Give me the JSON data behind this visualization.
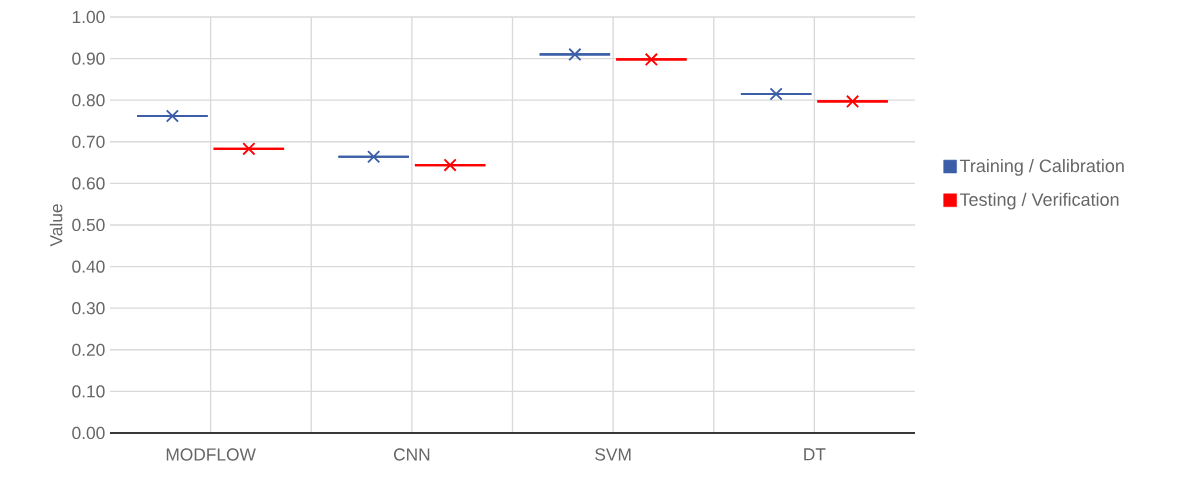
{
  "chart_data": {
    "type": "box",
    "ylabel": "Value",
    "categories": [
      "MODFLOW",
      "CNN",
      "SVM",
      "DT"
    ],
    "series": [
      {
        "name": "Training / Calibration",
        "color": "#3b5ea6",
        "boxes": [
          {
            "low": 0.762,
            "q1": 0.762,
            "median": 0.762,
            "q3": 0.762,
            "high": 0.762,
            "mean": 0.762
          },
          {
            "low": 0.664,
            "q1": 0.664,
            "median": 0.664,
            "q3": 0.664,
            "high": 0.664,
            "mean": 0.664
          },
          {
            "low": 0.91,
            "q1": 0.91,
            "median": 0.91,
            "q3": 0.91,
            "high": 0.91,
            "mean": 0.91
          },
          {
            "low": 0.815,
            "q1": 0.815,
            "median": 0.815,
            "q3": 0.815,
            "high": 0.815,
            "mean": 0.815
          }
        ]
      },
      {
        "name": "Testing / Verification",
        "color": "#ff0000",
        "boxes": [
          {
            "low": 0.683,
            "q1": 0.683,
            "median": 0.683,
            "q3": 0.683,
            "high": 0.683,
            "mean": 0.683
          },
          {
            "low": 0.644,
            "q1": 0.644,
            "median": 0.644,
            "q3": 0.644,
            "high": 0.644,
            "mean": 0.644
          },
          {
            "low": 0.898,
            "q1": 0.898,
            "median": 0.898,
            "q3": 0.898,
            "high": 0.898,
            "mean": 0.898
          },
          {
            "low": 0.797,
            "q1": 0.797,
            "median": 0.797,
            "q3": 0.797,
            "high": 0.797,
            "mean": 0.797
          }
        ]
      }
    ],
    "ylim": [
      0,
      1
    ],
    "yticks": [
      {
        "value": 0,
        "label": "0.00"
      },
      {
        "value": 0.1,
        "label": "0.10"
      },
      {
        "value": 0.2,
        "label": "0.20"
      },
      {
        "value": 0.3,
        "label": "0.30"
      },
      {
        "value": 0.4,
        "label": "0.40"
      },
      {
        "value": 0.5,
        "label": "0.50"
      },
      {
        "value": 0.6,
        "label": "0.60"
      },
      {
        "value": 0.7,
        "label": "0.70"
      },
      {
        "value": 0.8,
        "label": "0.80"
      },
      {
        "value": 0.9,
        "label": "0.90"
      },
      {
        "value": 1,
        "label": "1.00"
      }
    ],
    "grid": true,
    "legend": "right",
    "marker": "cross"
  }
}
